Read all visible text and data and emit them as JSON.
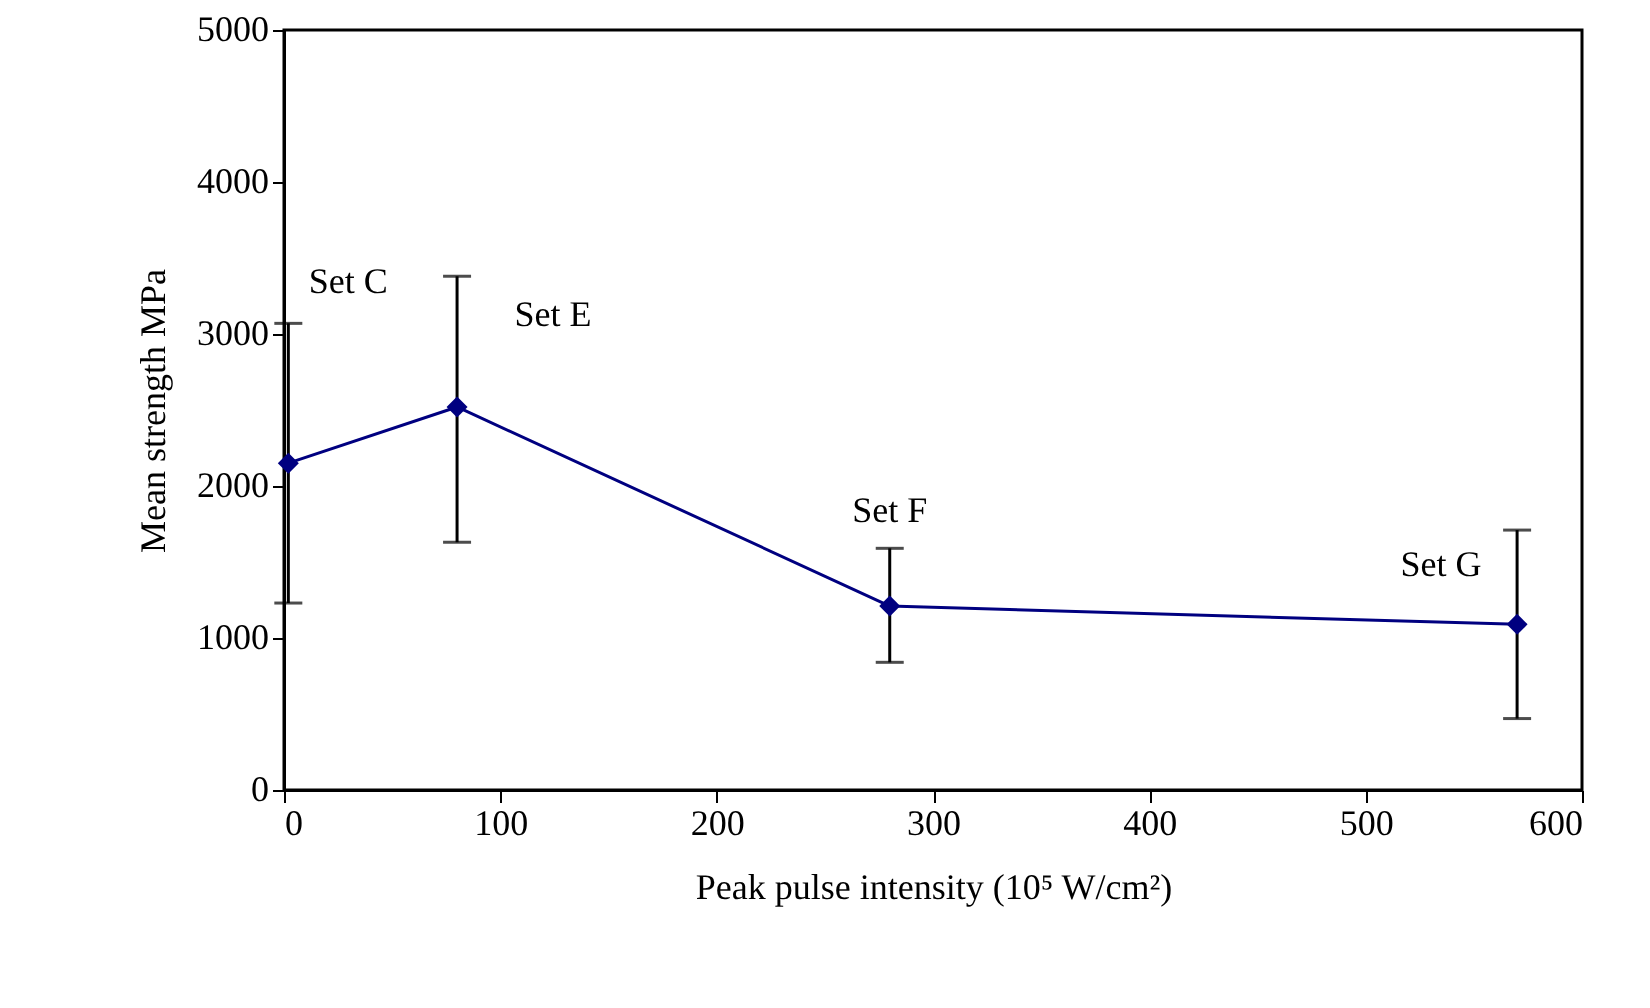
{
  "chart_data": {
    "type": "line",
    "xlabel": "Peak pulse intensity  (10⁵ W/cm²)",
    "ylabel": "Mean strength MPa",
    "x": [
      2,
      80,
      280,
      570
    ],
    "series": [
      {
        "color": "#000080",
        "values": [
          2150,
          2520,
          1210,
          1090
        ],
        "errors": [
          [
            1230,
            3070
          ],
          [
            1630,
            3380
          ],
          [
            840,
            1590
          ],
          [
            470,
            1710
          ]
        ]
      }
    ],
    "xlim": [
      0,
      600
    ],
    "xticks": [
      0,
      100,
      200,
      300,
      400,
      500,
      600
    ],
    "ylim": [
      0,
      5000
    ],
    "yticks": [
      0,
      1000,
      2000,
      3000,
      4000,
      5000
    ],
    "grid": false,
    "marker": "diamond",
    "line_style": "solid",
    "annotations": [
      {
        "text": "Set C",
        "x": 2,
        "y": 3070
      },
      {
        "text": "Set E",
        "x": 80,
        "y": 3380
      },
      {
        "text": "Set F",
        "x": 280,
        "y": 1590
      },
      {
        "text": "Set G",
        "x": 570,
        "y": 1710
      }
    ]
  }
}
